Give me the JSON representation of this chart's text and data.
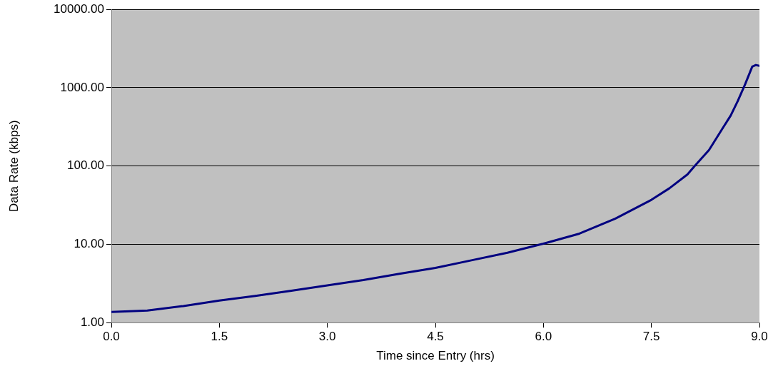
{
  "chart_data": {
    "type": "line",
    "xlabel": "Time since Entry (hrs)",
    "ylabel": "Data Rate (kbps)",
    "x": [
      0,
      0.5,
      1,
      1.5,
      2,
      2.5,
      3,
      3.5,
      4,
      4.5,
      5,
      5.5,
      6,
      6.5,
      7,
      7.5,
      7.75,
      8,
      8.1,
      8.3,
      8.5,
      8.6,
      8.7,
      8.8,
      8.9,
      8.95,
      9.0
    ],
    "series": [
      {
        "color": "#000080",
        "values": [
          1.37,
          1.43,
          1.63,
          1.91,
          2.19,
          2.56,
          2.99,
          3.5,
          4.2,
          5.0,
          6.25,
          7.8,
          10.2,
          13.7,
          21.3,
          37,
          52,
          78,
          100,
          160,
          315,
          440,
          680,
          1100,
          1860,
          1950,
          1900
        ]
      }
    ],
    "xlim": [
      0,
      9
    ],
    "xticks": [
      {
        "value": 0,
        "label": "0.0"
      },
      {
        "value": 1.5,
        "label": "1.5"
      },
      {
        "value": 3,
        "label": "3.0"
      },
      {
        "value": 4.5,
        "label": "4.5"
      },
      {
        "value": 6,
        "label": "6.0"
      },
      {
        "value": 7.5,
        "label": "7.5"
      },
      {
        "value": 9,
        "label": "9.0"
      }
    ],
    "ylim": [
      1,
      10000
    ],
    "yticks": [
      {
        "value": 1,
        "label": "1.00"
      },
      {
        "value": 10,
        "label": "10.00"
      },
      {
        "value": 100,
        "label": "100.00"
      },
      {
        "value": 1000,
        "label": "1000.00"
      },
      {
        "value": 10000,
        "label": "10000.00"
      }
    ],
    "log": "y",
    "grid": "y",
    "legend": false,
    "marker": "none",
    "line_style": "solid"
  }
}
